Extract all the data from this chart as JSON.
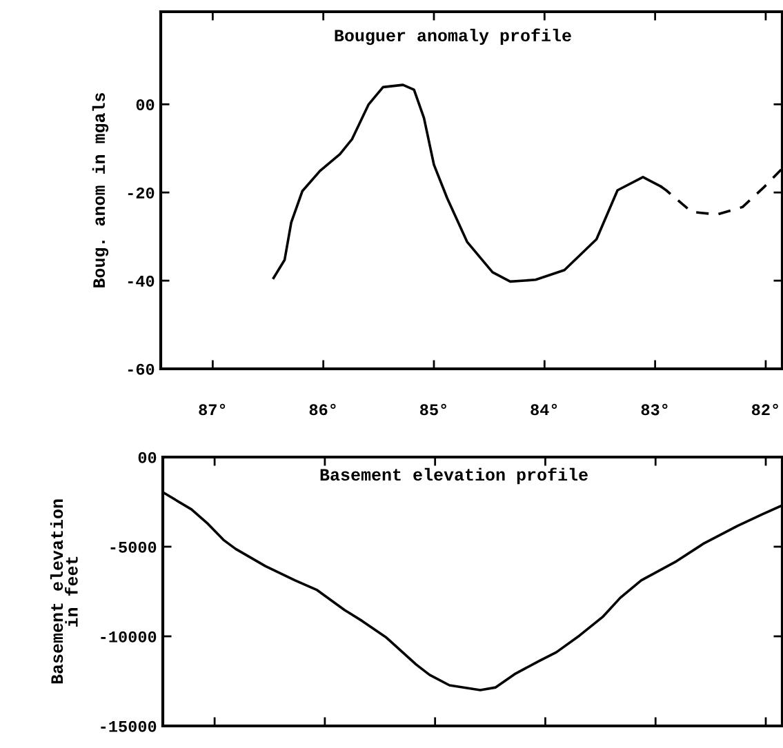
{
  "chart_data": [
    {
      "type": "line",
      "title": "Bouguer anomaly profile",
      "ylabel": "Boug. anom in mgals",
      "xlim": [
        87.47,
        81.85
      ],
      "xticks": [
        {
          "value": 87,
          "label": "87°"
        },
        {
          "value": 86,
          "label": "86°"
        },
        {
          "value": 85,
          "label": "85°"
        },
        {
          "value": 84,
          "label": "84°"
        },
        {
          "value": 83,
          "label": "83°"
        },
        {
          "value": 82,
          "label": "82°"
        }
      ],
      "ylim": [
        -60,
        21
      ],
      "yticks": [
        -60,
        -40,
        -20,
        {
          "value": 0,
          "label": "00"
        }
      ],
      "grid": false,
      "legend": false,
      "series": [
        {
          "color": "#000000",
          "line_style": "solid",
          "x": [
            86.45,
            86.35,
            86.29,
            86.19,
            86.03,
            85.85,
            85.74,
            85.59,
            85.46,
            85.28,
            85.18,
            85.09,
            85.0,
            84.88,
            84.7,
            84.47,
            84.31,
            84.08,
            83.82,
            83.53,
            83.34,
            83.11,
            82.95
          ],
          "values": [
            -39.4,
            -35.3,
            -26.8,
            -19.7,
            -15.1,
            -11.3,
            -7.9,
            0.0,
            3.9,
            4.4,
            3.3,
            -3.1,
            -13.7,
            -21.3,
            -31.2,
            -38.1,
            -40.2,
            -39.8,
            -37.6,
            -30.6,
            -19.5,
            -16.5,
            -18.6
          ]
        },
        {
          "color": "#000000",
          "line_style": "dashed",
          "x": [
            82.95,
            82.9,
            82.67,
            82.44,
            82.21,
            82.02,
            81.86
          ],
          "values": [
            -18.6,
            -19.5,
            -24.4,
            -25.0,
            -23.3,
            -18.9,
            -14.8
          ]
        }
      ]
    },
    {
      "type": "line",
      "title": "Basement elevation profile",
      "ylabel": "Basement elevation\nin feet",
      "xlim": [
        87.47,
        81.85
      ],
      "xticks": [
        87,
        86,
        85,
        84,
        83,
        82
      ],
      "tick_labels": "y",
      "ylim": [
        -15000,
        0
      ],
      "yticks": [
        -15000,
        -10000,
        -5000,
        {
          "value": 0,
          "label": "00"
        }
      ],
      "grid": false,
      "legend": false,
      "series": [
        {
          "color": "#000000",
          "line_style": "solid",
          "x": [
            87.47,
            87.21,
            87.06,
            86.92,
            86.81,
            86.54,
            86.27,
            86.07,
            85.82,
            85.66,
            85.44,
            85.17,
            85.05,
            84.87,
            84.59,
            84.45,
            84.27,
            84.06,
            83.9,
            83.69,
            83.48,
            83.32,
            83.13,
            82.81,
            82.56,
            82.26,
            82.03,
            81.85
          ],
          "values": [
            -1960,
            -2920,
            -3730,
            -4620,
            -5120,
            -6080,
            -6880,
            -7420,
            -8540,
            -9150,
            -10080,
            -11580,
            -12150,
            -12730,
            -13000,
            -12850,
            -12080,
            -11390,
            -10890,
            -9960,
            -8920,
            -7850,
            -6880,
            -5810,
            -4810,
            -3850,
            -3190,
            -2690
          ]
        }
      ]
    }
  ]
}
